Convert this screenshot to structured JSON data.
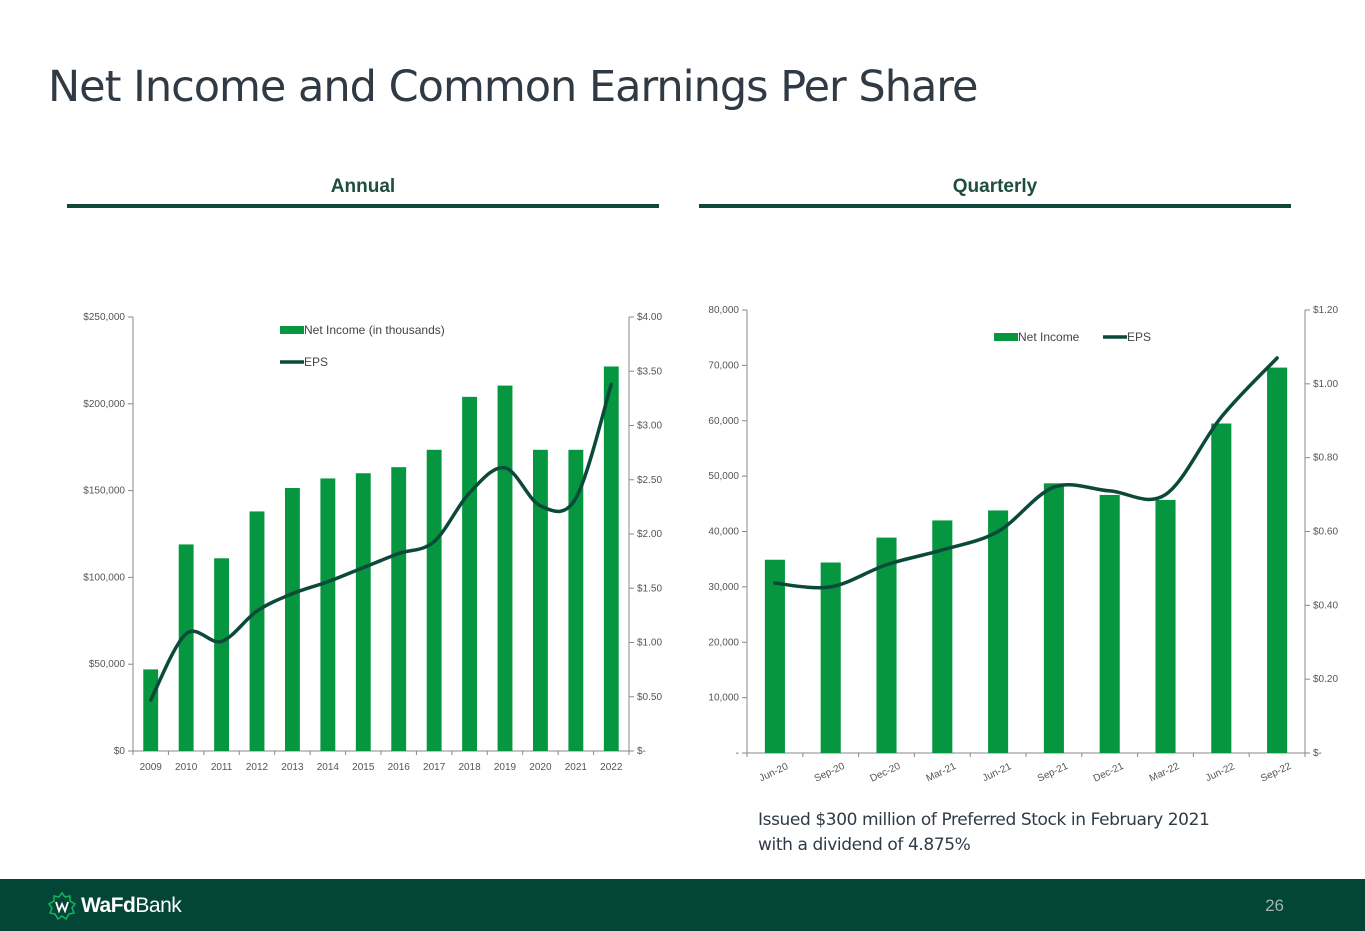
{
  "title": "Net Income and Common Earnings Per Share",
  "sections": {
    "annual": "Annual",
    "quarterly": "Quarterly"
  },
  "note": "Issued $300 million of Preferred Stock in February 2021 with a dividend of 4.875%",
  "footer": {
    "logo_bold": "WaFd",
    "logo_rest": "Bank",
    "page_number": "26"
  },
  "colors": {
    "bar": "#06963f",
    "line": "#0b4a3b",
    "footer": "#034536",
    "rule": "#0d4a3c"
  },
  "chart_data": [
    {
      "type": "bar",
      "name": "annual",
      "categories": [
        "2009",
        "2010",
        "2011",
        "2012",
        "2013",
        "2014",
        "2015",
        "2016",
        "2017",
        "2018",
        "2019",
        "2020",
        "2021",
        "2022"
      ],
      "series": [
        {
          "name": "Net Income (in thousands)",
          "type": "bar",
          "axis": "left",
          "values": [
            47000,
            119000,
            111000,
            138000,
            151500,
            157000,
            160000,
            163500,
            173500,
            204000,
            210500,
            173500,
            173500,
            221500
          ]
        },
        {
          "name": "EPS",
          "type": "line",
          "axis": "right",
          "values": [
            0.47,
            1.08,
            1.01,
            1.29,
            1.45,
            1.56,
            1.69,
            1.82,
            1.93,
            2.38,
            2.61,
            2.26,
            2.33,
            3.38
          ]
        }
      ],
      "y_left": {
        "min": 0,
        "max": 250000,
        "ticks": [
          "$0",
          "$50,000",
          "$100,000",
          "$150,000",
          "$200,000",
          "$250,000"
        ]
      },
      "y_right": {
        "min": 0,
        "max": 4,
        "ticks": [
          "$-",
          "$0.50",
          "$1.00",
          "$1.50",
          "$2.00",
          "$2.50",
          "$3.00",
          "$3.50",
          "$4.00"
        ]
      },
      "legend": "top-left, stacked"
    },
    {
      "type": "bar",
      "name": "quarterly",
      "categories": [
        "Jun-20",
        "Sep-20",
        "Dec-20",
        "Mar-21",
        "Jun-21",
        "Sep-21",
        "Dec-21",
        "Mar-22",
        "Jun-22",
        "Sep-22"
      ],
      "series": [
        {
          "name": "Net Income",
          "type": "bar",
          "axis": "left",
          "values": [
            34900,
            34400,
            38900,
            42000,
            43800,
            48700,
            46600,
            45700,
            59500,
            69600
          ]
        },
        {
          "name": "EPS",
          "type": "line",
          "axis": "right",
          "values": [
            0.46,
            0.45,
            0.51,
            0.55,
            0.6,
            0.72,
            0.71,
            0.7,
            0.91,
            1.07
          ]
        }
      ],
      "y_left": {
        "min": 0,
        "max": 80000,
        "ticks": [
          "-",
          "10,000",
          "20,000",
          "30,000",
          "40,000",
          "50,000",
          "60,000",
          "70,000",
          "80,000"
        ]
      },
      "y_right": {
        "min": 0,
        "max": 1.2,
        "ticks": [
          "$-",
          "$0.20",
          "$0.40",
          "$0.60",
          "$0.80",
          "$1.00",
          "$1.20"
        ]
      },
      "legend": "top-center, horizontal"
    }
  ]
}
